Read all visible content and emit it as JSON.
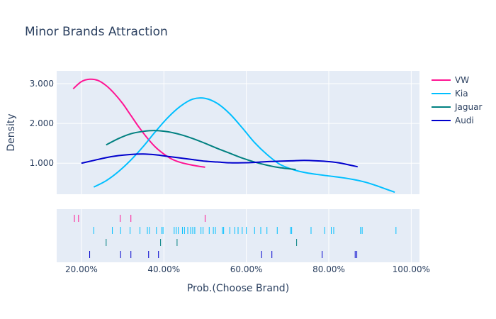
{
  "chart_data": {
    "type": "distplot",
    "title": "Minor Brands Attraction",
    "xlabel": "Prob.(Choose Brand)",
    "ylabel": "Density",
    "xlim": [
      0.14,
      1.02
    ],
    "ylim": [
      0.22,
      3.32
    ],
    "x_ticks": [
      0.2,
      0.4,
      0.6,
      0.8,
      1.0
    ],
    "x_tick_labels": [
      "20.00%",
      "40.00%",
      "60.00%",
      "80.00%",
      "100.00%"
    ],
    "y_ticks": [
      1.0,
      2.0,
      3.0
    ],
    "y_tick_labels": [
      "1.000",
      "2.000",
      "3.000"
    ],
    "grid": true,
    "legend_position": "right",
    "series": [
      {
        "name": "VW",
        "color": "#ff1493",
        "curve_x": [
          0.18,
          0.2,
          0.22,
          0.24,
          0.26,
          0.28,
          0.3,
          0.32,
          0.34,
          0.36,
          0.38,
          0.4,
          0.42,
          0.44,
          0.46,
          0.48,
          0.5
        ],
        "curve_y": [
          2.87,
          3.05,
          3.11,
          3.08,
          2.95,
          2.75,
          2.5,
          2.2,
          1.9,
          1.63,
          1.4,
          1.23,
          1.1,
          1.02,
          0.97,
          0.93,
          0.9
        ],
        "rug": [
          0.183,
          0.193,
          0.294,
          0.32,
          0.5
        ]
      },
      {
        "name": "Kia",
        "color": "#00bfff",
        "curve_x": [
          0.23,
          0.26,
          0.29,
          0.32,
          0.35,
          0.38,
          0.41,
          0.44,
          0.47,
          0.5,
          0.53,
          0.56,
          0.59,
          0.62,
          0.65,
          0.68,
          0.71,
          0.74,
          0.77,
          0.8,
          0.83,
          0.86,
          0.89,
          0.92,
          0.96
        ],
        "curve_y": [
          0.4,
          0.56,
          0.79,
          1.08,
          1.42,
          1.8,
          2.15,
          2.43,
          2.61,
          2.63,
          2.5,
          2.24,
          1.89,
          1.52,
          1.22,
          0.98,
          0.85,
          0.77,
          0.72,
          0.68,
          0.64,
          0.59,
          0.52,
          0.42,
          0.27
        ],
        "rug": [
          0.23,
          0.275,
          0.295,
          0.318,
          0.342,
          0.36,
          0.365,
          0.382,
          0.395,
          0.398,
          0.425,
          0.43,
          0.435,
          0.445,
          0.45,
          0.458,
          0.465,
          0.47,
          0.475,
          0.49,
          0.495,
          0.51,
          0.52,
          0.525,
          0.542,
          0.545,
          0.56,
          0.572,
          0.58,
          0.59,
          0.6,
          0.62,
          0.635,
          0.65,
          0.675,
          0.707,
          0.71,
          0.757,
          0.79,
          0.806,
          0.812,
          0.877,
          0.881,
          0.963
        ]
      },
      {
        "name": "Jaguar",
        "color": "#008080",
        "curve_x": [
          0.26,
          0.29,
          0.32,
          0.35,
          0.38,
          0.41,
          0.44,
          0.47,
          0.5,
          0.53,
          0.56,
          0.59,
          0.62,
          0.65,
          0.68,
          0.72
        ],
        "curve_y": [
          1.46,
          1.62,
          1.74,
          1.8,
          1.82,
          1.79,
          1.72,
          1.62,
          1.5,
          1.37,
          1.25,
          1.13,
          1.03,
          0.95,
          0.89,
          0.84
        ],
        "rug": [
          0.26,
          0.392,
          0.432,
          0.722
        ]
      },
      {
        "name": "Audi",
        "color": "#0000cd",
        "curve_x": [
          0.2,
          0.23,
          0.26,
          0.29,
          0.32,
          0.35,
          0.38,
          0.41,
          0.44,
          0.47,
          0.5,
          0.53,
          0.56,
          0.59,
          0.62,
          0.65,
          0.68,
          0.71,
          0.74,
          0.77,
          0.8,
          0.83,
          0.87
        ],
        "curve_y": [
          1.0,
          1.07,
          1.14,
          1.19,
          1.22,
          1.23,
          1.21,
          1.17,
          1.13,
          1.09,
          1.05,
          1.03,
          1.01,
          1.01,
          1.02,
          1.04,
          1.05,
          1.06,
          1.07,
          1.06,
          1.04,
          1.0,
          0.91
        ],
        "rug": [
          0.22,
          0.295,
          0.32,
          0.363,
          0.387,
          0.637,
          0.662,
          0.784,
          0.864,
          0.868
        ]
      }
    ]
  }
}
